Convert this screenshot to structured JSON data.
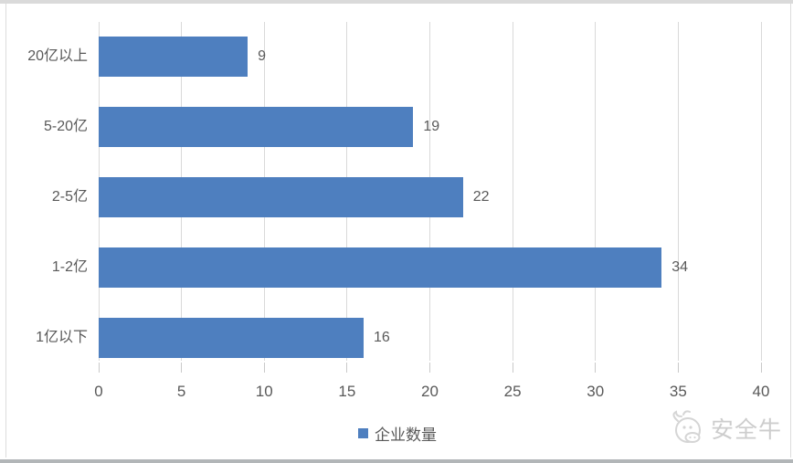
{
  "chart_data": {
    "type": "bar",
    "orientation": "horizontal",
    "title": "",
    "xlabel": "",
    "ylabel": "",
    "categories": [
      "20亿以上",
      "5-20亿",
      "2-5亿",
      "1-2亿",
      "1亿以下"
    ],
    "series": [
      {
        "name": "企业数量",
        "values": [
          9,
          19,
          22,
          34,
          16
        ]
      }
    ],
    "data_labels": [
      "9",
      "19",
      "22",
      "34",
      "16"
    ],
    "xlim": [
      0,
      40
    ],
    "x_ticks": [
      "0",
      "5",
      "10",
      "15",
      "20",
      "25",
      "30",
      "35",
      "40"
    ],
    "grid": "vertical-gridlines",
    "legend_position": "bottom-center"
  },
  "legend": {
    "label": "企业数量"
  },
  "watermark": {
    "icon": "cow-mascot-icon",
    "text": "安全牛"
  },
  "colors": {
    "bar": "#4e7fbf",
    "gridline": "#d9d9d9",
    "tick": "#c9c9c9",
    "text": "#595959",
    "frame": "#dcdcdc",
    "watermark": "#cdcdcd",
    "bottom_bar": "#b2b6b8",
    "background": "#ffffff"
  }
}
